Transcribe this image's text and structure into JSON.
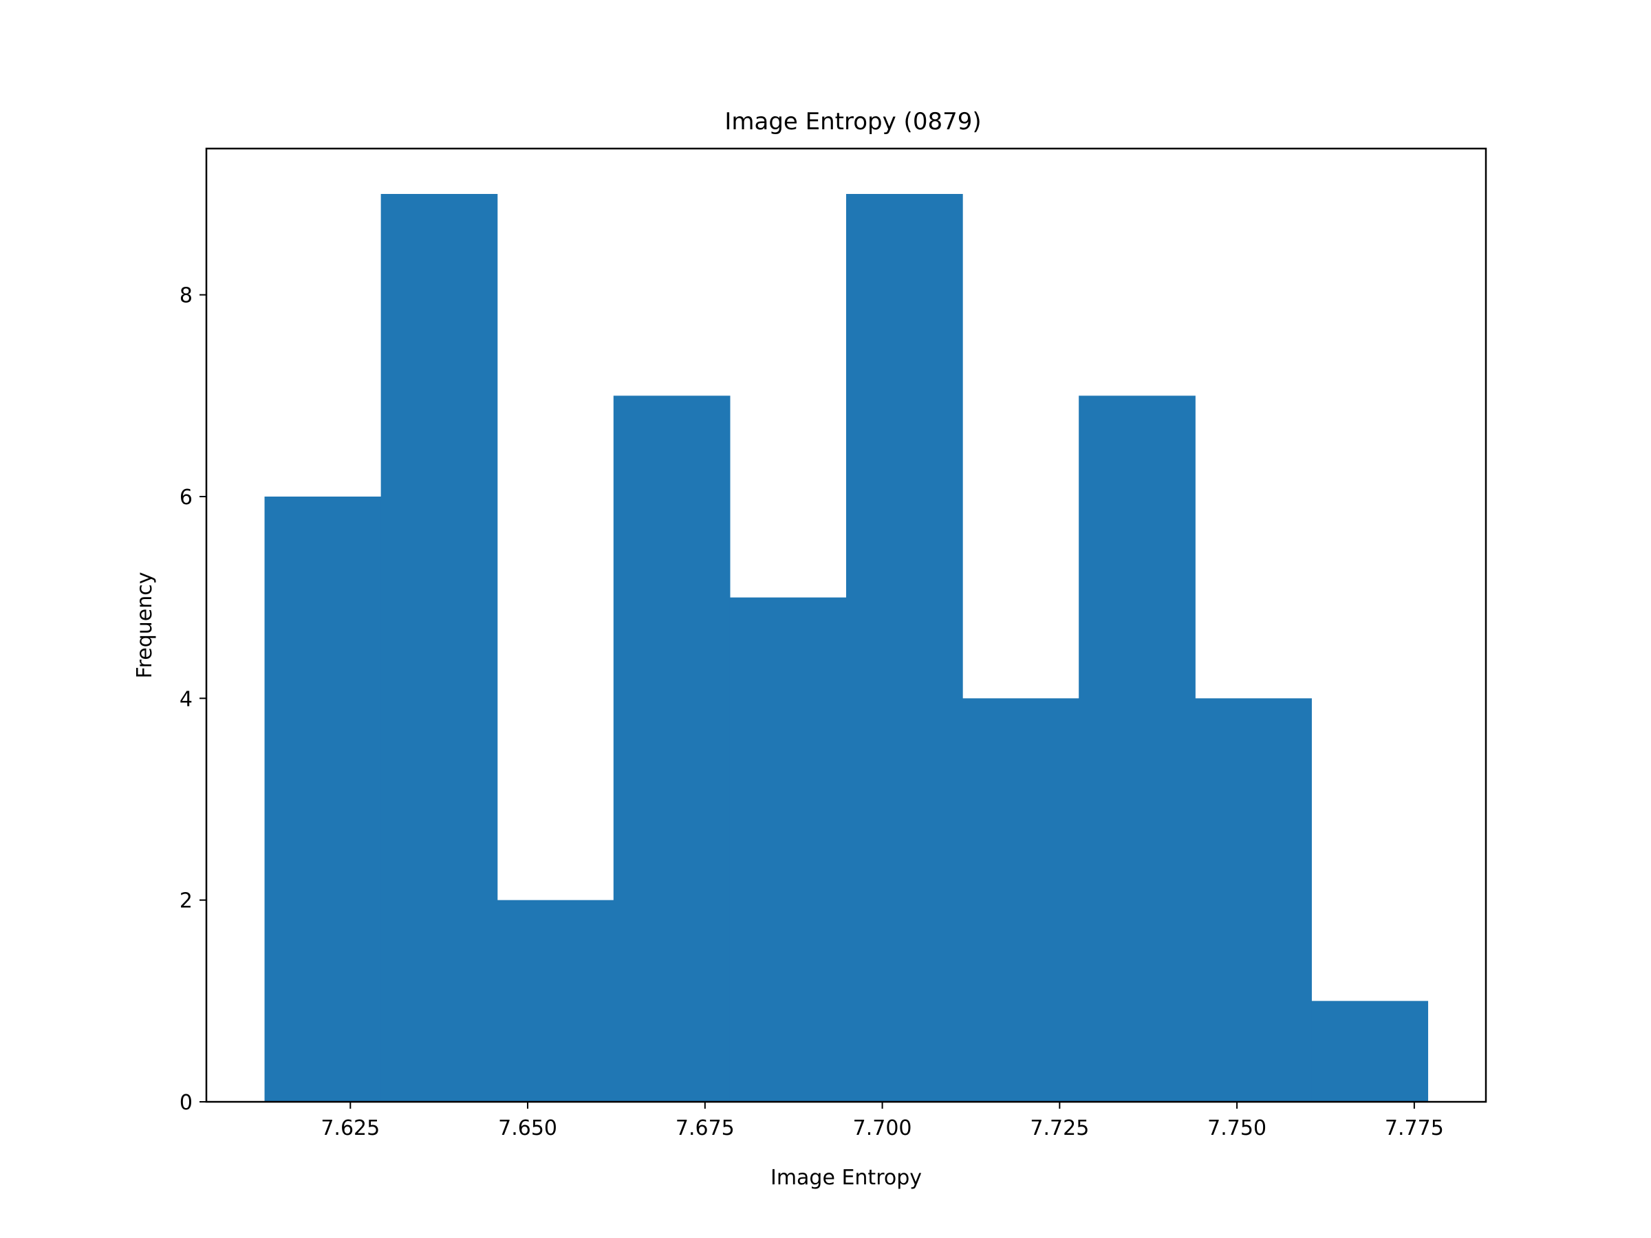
{
  "chart_data": {
    "type": "bar",
    "title": "Image Entropy (0879)",
    "xlabel": "Image Entropy",
    "ylabel": "Frequency",
    "bin_edges": [
      7.6129,
      7.6293,
      7.6457,
      7.6621,
      7.6785,
      7.6949,
      7.7113,
      7.7277,
      7.7441,
      7.7605,
      7.7769
    ],
    "values": [
      6,
      9,
      2,
      7,
      5,
      9,
      4,
      7,
      4,
      1
    ],
    "xlim": [
      7.6047,
      7.7851
    ],
    "ylim": [
      0,
      9.45
    ],
    "xticks": [
      7.625,
      7.65,
      7.675,
      7.7,
      7.725,
      7.75,
      7.775
    ],
    "xtick_labels": [
      "7.625",
      "7.650",
      "7.675",
      "7.700",
      "7.725",
      "7.750",
      "7.775"
    ],
    "yticks": [
      0,
      2,
      4,
      6,
      8
    ],
    "ytick_labels": [
      "0",
      "2",
      "4",
      "6",
      "8"
    ],
    "bar_color": "#2077b4",
    "grid": false,
    "legend": "none"
  }
}
